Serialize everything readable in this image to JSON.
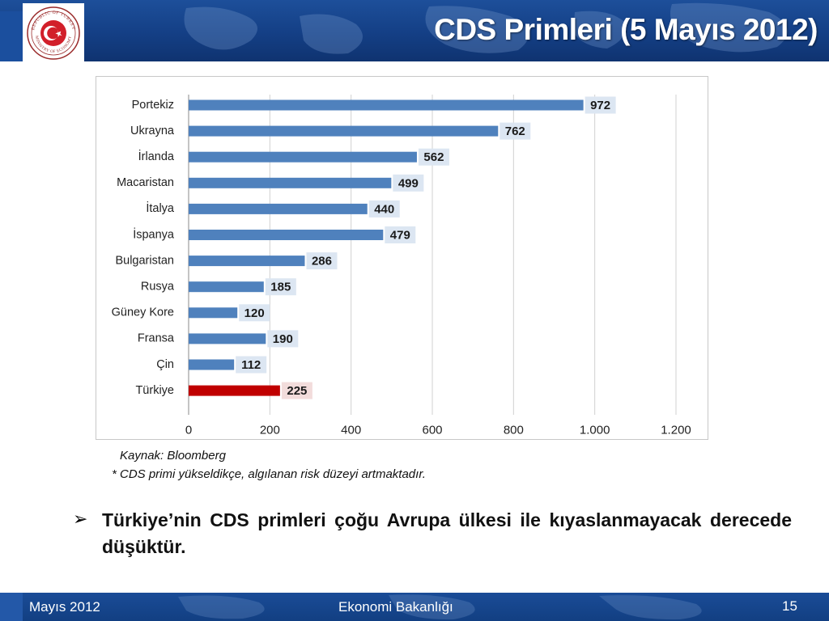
{
  "header": {
    "title": "CDS Primleri (5 Mayıs 2012)",
    "logo_text_outer": "REPUBLIC OF TURKEY",
    "logo_text_inner": "MINISTRY OF ECONOMY"
  },
  "colors": {
    "header_blue": "#143f85",
    "bar_blue": "#4f81bd",
    "bar_highlight": "#c00000",
    "label_bg_blue": "#dce6f2",
    "label_bg_red": "#f2dcdb"
  },
  "chart_data": {
    "type": "bar",
    "orientation": "horizontal",
    "categories": [
      "Portekiz",
      "Ukrayna",
      "İrlanda",
      "Macaristan",
      "İtalya",
      "İspanya",
      "Bulgaristan",
      "Rusya",
      "Güney Kore",
      "Fransa",
      "Çin",
      "Türkiye"
    ],
    "values": [
      972,
      762,
      562,
      499,
      440,
      479,
      286,
      185,
      120,
      190,
      112,
      225
    ],
    "highlight_category": "Türkiye",
    "xlim": [
      0,
      1200
    ],
    "xticks": [
      0,
      200,
      400,
      600,
      800,
      1000,
      1200
    ],
    "xtick_labels": [
      "0",
      "200",
      "400",
      "600",
      "800",
      "1.000",
      "1.200"
    ],
    "grid": "vertical",
    "data_labels": true,
    "title": "",
    "xlabel": "",
    "ylabel": ""
  },
  "notes": {
    "source": "Kaynak: Bloomberg",
    "footnote": "* CDS primi yükseldikçe, algılanan risk düzeyi artmaktadır."
  },
  "bullet": {
    "marker": "➢",
    "text": "Türkiye’nin CDS primleri çoğu Avrupa ülkesi ile kıyaslanmayacak derecede düşüktür."
  },
  "footer": {
    "date": "Mayıs 2012",
    "ministry": "Ekonomi Bakanlığı",
    "page_number": "15"
  }
}
